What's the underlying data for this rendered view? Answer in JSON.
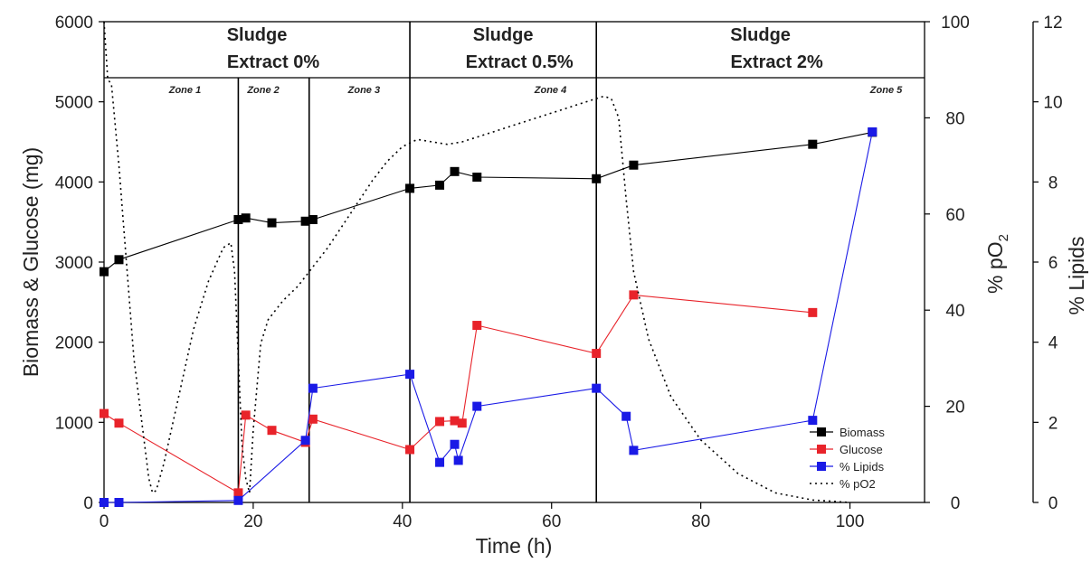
{
  "chart_data": {
    "type": "line",
    "xlabel": "Time (h)",
    "ylabel_left": "Biomass & Glucose (mg)",
    "ylabel_right1": "% pO",
    "ylabel_right1_sub": "2",
    "ylabel_right2": "% Lipids",
    "xlim": [
      0,
      110
    ],
    "ylim_left": [
      0,
      6000
    ],
    "ylim_right1": [
      0,
      100
    ],
    "ylim_right2": [
      0,
      12
    ],
    "x_ticks": [
      0,
      20,
      40,
      60,
      80,
      100
    ],
    "y_left_ticks": [
      0,
      1000,
      2000,
      3000,
      4000,
      5000,
      6000
    ],
    "y_right1_ticks": [
      0,
      20,
      40,
      60,
      80,
      100
    ],
    "y_right2_ticks": [
      0,
      2,
      4,
      6,
      8,
      10,
      12
    ],
    "header_boundaries": [
      41,
      66
    ],
    "phases": [
      {
        "line1": "Sludge",
        "line2": "Extract 0%"
      },
      {
        "line1": "Sludge",
        "line2": "Extract 0.5%"
      },
      {
        "line1": "Sludge",
        "line2": "Extract 2%"
      }
    ],
    "zone_boundaries": [
      18,
      27.5,
      41,
      66
    ],
    "zones": [
      {
        "label": "Zone 1",
        "x": 13
      },
      {
        "label": "Zone 2",
        "x": 23.5
      },
      {
        "label": "Zone 3",
        "x": 37
      },
      {
        "label": "Zone 4",
        "x": 62
      },
      {
        "label": "Zone  5",
        "x": 107
      }
    ],
    "series": [
      {
        "name": "Biomass",
        "axis": "left",
        "color": "#000000",
        "x": [
          0,
          2,
          18,
          19,
          22.5,
          27,
          28,
          41,
          45,
          47,
          50,
          66,
          71,
          95,
          103
        ],
        "y": [
          2880,
          3030,
          3530,
          3550,
          3490,
          3510,
          3530,
          3920,
          3960,
          4130,
          4060,
          4040,
          4210,
          4470,
          4620
        ]
      },
      {
        "name": "Glucose",
        "axis": "left",
        "color": "#e8232a",
        "x": [
          0,
          2,
          18,
          19,
          22.5,
          27,
          28,
          41,
          45,
          47,
          48,
          50,
          66,
          71,
          95
        ],
        "y": [
          1110,
          990,
          120,
          1090,
          900,
          750,
          1040,
          660,
          1010,
          1020,
          990,
          2210,
          1860,
          2590,
          2370
        ]
      },
      {
        "name": "% Lipids",
        "axis": "right2",
        "color": "#1a1ae6",
        "x": [
          0,
          2,
          18,
          27,
          28,
          41,
          45,
          47,
          47.5,
          50,
          66,
          70,
          71,
          95,
          103
        ],
        "y": [
          0,
          0,
          0.05,
          1.55,
          2.85,
          3.2,
          1.0,
          1.45,
          1.05,
          2.4,
          2.85,
          2.15,
          1.3,
          2.05,
          9.25
        ]
      },
      {
        "name": "% pO2",
        "axis": "right1",
        "color": "#000000",
        "dashed": true,
        "x": [
          0,
          0.5,
          1,
          2,
          4,
          6,
          6.5,
          7,
          8,
          10,
          12,
          14,
          16,
          17,
          17.5,
          18,
          18.5,
          19,
          19.5,
          20,
          21,
          22,
          24,
          26,
          28,
          30,
          33,
          36,
          38,
          40,
          42,
          44,
          46,
          48,
          52,
          56,
          60,
          64,
          66,
          67,
          68,
          69,
          70,
          71,
          73,
          76,
          80,
          85,
          90,
          95,
          100
        ],
        "y": [
          100,
          88,
          87,
          70,
          30,
          5,
          2,
          2.5,
          8,
          22,
          36,
          46,
          53,
          54,
          48,
          30,
          12,
          5,
          2,
          15,
          33,
          38,
          42,
          45,
          49,
          53,
          60,
          67,
          71,
          74,
          75.5,
          75,
          74.5,
          75,
          77,
          79,
          81,
          83,
          84,
          84.5,
          84,
          80,
          63,
          48,
          34,
          22,
          13,
          6,
          2,
          0.5,
          0
        ]
      }
    ],
    "legend_position": "bottom-right"
  }
}
